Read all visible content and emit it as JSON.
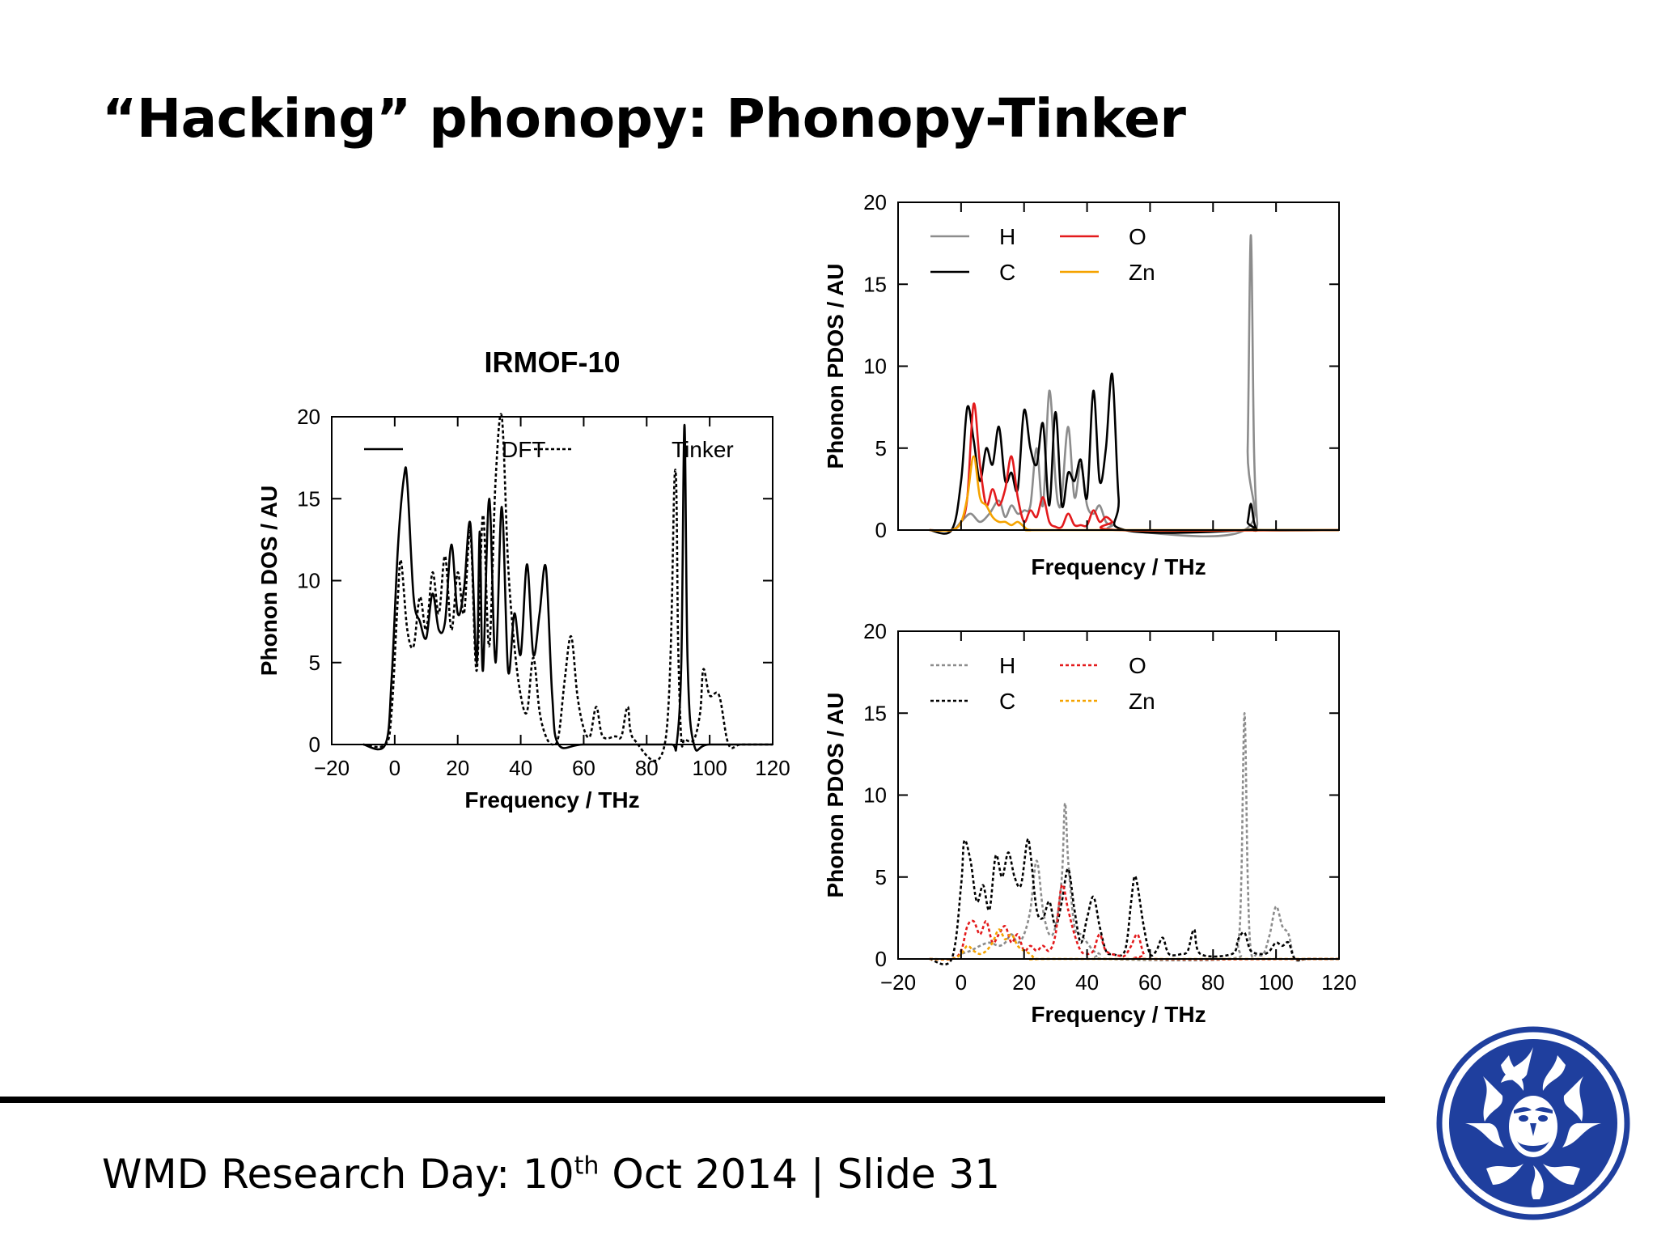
{
  "slide": {
    "title": "“Hacking” phonopy: Phonopy-Tinker",
    "footer": {
      "before": "WMD Research Day: 10",
      "sup": "th",
      "after": " Oct 2014 | Slide 31"
    }
  },
  "chart_data": [
    {
      "id": "dos",
      "type": "line",
      "title": "IRMOF-10",
      "xlabel": "Frequency / THz",
      "ylabel": "Phonon DOS / AU",
      "xlim": [
        -20,
        120
      ],
      "ylim": [
        0,
        20
      ],
      "xticks": [
        -20,
        0,
        20,
        40,
        60,
        80,
        100,
        120
      ],
      "yticks": [
        0,
        5,
        10,
        15,
        20
      ],
      "xtick_labels": [
        "−20",
        "0",
        "20",
        "40",
        "60",
        "80",
        "100",
        "120"
      ],
      "ytick_labels": [
        "0",
        "5",
        "10",
        "15",
        "20"
      ],
      "legend": "top",
      "series": [
        {
          "name": "DFT",
          "color": "#000000",
          "dash": "solid",
          "x": [
            -10,
            -3,
            -1,
            1,
            3,
            4,
            6,
            8,
            10,
            12,
            14,
            16,
            18,
            20,
            22,
            24,
            26,
            27,
            28,
            30,
            32,
            34,
            36,
            38,
            40,
            42,
            44,
            46,
            48,
            50,
            52,
            60,
            80,
            88,
            89.5,
            91,
            92,
            93,
            95,
            100,
            120
          ],
          "y": [
            0,
            0,
            4,
            12,
            16.4,
            16,
            9,
            7.5,
            6.5,
            9.2,
            7,
            7.5,
            12.2,
            8,
            9.5,
            13.5,
            5,
            13,
            4.5,
            15,
            5,
            14.5,
            4.5,
            8,
            5.5,
            11,
            5.5,
            8,
            10.8,
            3,
            0,
            0,
            0,
            0,
            0,
            5,
            19.5,
            5,
            0,
            0,
            0
          ]
        },
        {
          "name": "Tinker",
          "color": "#000000",
          "dash": "dotted",
          "x": [
            -10,
            -3,
            -1,
            1,
            2,
            4,
            6,
            8,
            10,
            12,
            14,
            16,
            18,
            20,
            22,
            24,
            26,
            28,
            30,
            32,
            34,
            36,
            38,
            40,
            42,
            44,
            46,
            48,
            50,
            52,
            54,
            56,
            58,
            60,
            62,
            64,
            66,
            70,
            72,
            74,
            76,
            86,
            89,
            90,
            91,
            92,
            95,
            97,
            98,
            100,
            103,
            106,
            110,
            120
          ],
          "y": [
            0,
            0,
            2,
            9,
            11.2,
            7,
            6,
            9,
            7,
            10.5,
            8,
            11.5,
            7,
            10.5,
            8,
            13,
            4.5,
            14,
            6,
            16,
            20,
            11,
            6,
            3,
            2,
            5.3,
            2,
            0.5,
            0,
            0.5,
            4,
            6.6,
            3,
            1,
            0.5,
            2.3,
            0.5,
            0.5,
            0.5,
            2.3,
            0.3,
            0.3,
            16.7,
            6,
            0.3,
            0.3,
            0.3,
            2,
            4.6,
            3,
            3,
            0,
            0,
            0
          ]
        }
      ]
    },
    {
      "id": "pdos-dft",
      "type": "line",
      "xlabel": "Frequency / THz",
      "ylabel": "Phonon PDOS / AU",
      "xlim": [
        -20,
        120
      ],
      "ylim": [
        0,
        20
      ],
      "yticks": [
        0,
        5,
        10,
        15,
        20
      ],
      "ytick_labels": [
        "0",
        "5",
        "10",
        "15",
        "20"
      ],
      "xticks": [
        -20,
        0,
        20,
        40,
        60,
        80,
        100,
        120
      ],
      "show_xtick_labels": false,
      "legend": "top-left",
      "series": [
        {
          "name": "H",
          "color": "#8c8c8c",
          "dash": "solid",
          "x": [
            -10,
            -3,
            0,
            3,
            6,
            9,
            12,
            14,
            16,
            18,
            20,
            22,
            24,
            26,
            28,
            30,
            31,
            32,
            34,
            36,
            38,
            40,
            42,
            44,
            46,
            48,
            50,
            90,
            91,
            92,
            93,
            94,
            95,
            120
          ],
          "y": [
            0,
            0,
            0.5,
            1,
            0.5,
            1,
            1.8,
            0.8,
            1.5,
            1,
            1.2,
            1.5,
            5,
            1.5,
            8.5,
            3,
            1.5,
            2,
            6.3,
            2,
            4,
            1.5,
            1,
            1.5,
            0.5,
            0.3,
            0,
            0,
            5,
            18,
            5,
            0.5,
            0,
            0
          ]
        },
        {
          "name": "C",
          "color": "#000000",
          "dash": "solid",
          "x": [
            -10,
            -3,
            0,
            2,
            4,
            6,
            8,
            10,
            12,
            14,
            16,
            18,
            20,
            22,
            24,
            26,
            28,
            30,
            32,
            34,
            36,
            38,
            40,
            42,
            44,
            46,
            48,
            50,
            52,
            90,
            91,
            92,
            93,
            94,
            95,
            120
          ],
          "y": [
            0,
            0,
            3,
            7.5,
            5.5,
            3,
            5,
            4,
            6.3,
            3,
            3.5,
            2.5,
            7.3,
            5,
            4,
            6.5,
            1.5,
            7.2,
            1.5,
            3.5,
            3,
            4.3,
            2,
            8.5,
            3,
            5,
            9.5,
            2,
            0,
            0,
            0.5,
            1.6,
            0.5,
            0,
            0,
            0
          ]
        },
        {
          "name": "O",
          "color": "#e31a1c",
          "dash": "solid",
          "x": [
            -10,
            -3,
            0,
            2,
            4,
            6,
            8,
            10,
            12,
            14,
            16,
            18,
            20,
            22,
            24,
            26,
            28,
            30,
            32,
            34,
            36,
            38,
            40,
            42,
            44,
            46,
            48,
            50,
            120
          ],
          "y": [
            0,
            0,
            0.5,
            2,
            7.7,
            4,
            1.5,
            2.5,
            1.5,
            2.5,
            4.5,
            2,
            0.5,
            1.2,
            0.8,
            2,
            0.5,
            0.2,
            0.2,
            1,
            0.3,
            0.3,
            0.3,
            1.2,
            0.5,
            0.8,
            0.5,
            0,
            0
          ]
        },
        {
          "name": "Zn",
          "color": "#f5a300",
          "dash": "solid",
          "x": [
            -10,
            -3,
            0,
            2,
            4,
            6,
            8,
            10,
            12,
            14,
            16,
            18,
            20,
            22,
            30,
            120
          ],
          "y": [
            0,
            0,
            0.5,
            2,
            4.5,
            2,
            1.5,
            0.8,
            0.5,
            0.5,
            0.3,
            0.5,
            0.2,
            0,
            0,
            0
          ]
        }
      ]
    },
    {
      "id": "pdos-tinker",
      "type": "line",
      "xlabel": "Frequency / THz",
      "ylabel": "Phonon PDOS / AU",
      "xlim": [
        -20,
        120
      ],
      "ylim": [
        0,
        20
      ],
      "xticks": [
        -20,
        0,
        20,
        40,
        60,
        80,
        100,
        120
      ],
      "yticks": [
        0,
        5,
        10,
        15,
        20
      ],
      "xtick_labels": [
        "−20",
        "0",
        "20",
        "40",
        "60",
        "80",
        "100",
        "120"
      ],
      "ytick_labels": [
        "0",
        "5",
        "10",
        "15",
        "20"
      ],
      "legend": "top-left",
      "series": [
        {
          "name": "H",
          "color": "#8c8c8c",
          "dash": "dotted",
          "x": [
            -10,
            -3,
            0,
            3,
            6,
            9,
            12,
            14,
            16,
            18,
            20,
            22,
            24,
            26,
            28,
            30,
            32,
            33,
            34,
            36,
            38,
            40,
            42,
            44,
            46,
            85,
            88,
            89,
            90,
            91,
            92,
            94,
            96,
            98,
            100,
            102,
            104,
            106,
            110,
            120
          ],
          "y": [
            0,
            0,
            0.3,
            0.5,
            0.8,
            1,
            0.8,
            1,
            1.5,
            1,
            1.5,
            3,
            6,
            3,
            1.5,
            2,
            5,
            9.5,
            6,
            2,
            1.5,
            1,
            0.5,
            0.3,
            0,
            0,
            1,
            5,
            15,
            5,
            0.5,
            0.3,
            0.3,
            1.5,
            3.2,
            2,
            1.5,
            0,
            0,
            0
          ]
        },
        {
          "name": "C",
          "color": "#000000",
          "dash": "dotted",
          "x": [
            -10,
            -3,
            0,
            1,
            3,
            5,
            7,
            9,
            11,
            13,
            15,
            17,
            19,
            21,
            22,
            24,
            26,
            28,
            30,
            32,
            34,
            36,
            38,
            40,
            42,
            44,
            46,
            48,
            52,
            54,
            55,
            56,
            58,
            60,
            62,
            64,
            66,
            70,
            72,
            74,
            76,
            86,
            88,
            90,
            92,
            96,
            98,
            100,
            102,
            104,
            106,
            110,
            120
          ],
          "y": [
            0,
            0,
            4.5,
            7.2,
            6,
            3.5,
            4.5,
            3,
            6.3,
            5,
            6.5,
            5,
            4.5,
            7.2,
            6.5,
            3,
            2.5,
            3.5,
            2,
            3.5,
            5.5,
            3,
            1,
            2.5,
            3.8,
            2,
            0.5,
            0.3,
            0.5,
            3.5,
            5,
            4.5,
            2,
            0.3,
            0.5,
            1.3,
            0.3,
            0.3,
            0.5,
            1.8,
            0.3,
            0.3,
            1.2,
            1.6,
            0.5,
            0.3,
            0.5,
            1,
            0.8,
            1,
            0,
            0,
            0
          ]
        },
        {
          "name": "O",
          "color": "#e31a1c",
          "dash": "dotted",
          "x": [
            -10,
            -3,
            0,
            2,
            4,
            6,
            8,
            10,
            12,
            14,
            16,
            18,
            20,
            22,
            24,
            26,
            28,
            30,
            32,
            34,
            36,
            38,
            40,
            42,
            44,
            46,
            50,
            52,
            54,
            56,
            58,
            60,
            120
          ],
          "y": [
            0,
            0,
            0.5,
            2,
            2.3,
            1.5,
            2.3,
            1,
            1.5,
            2,
            1,
            1.5,
            0.5,
            0.8,
            0.5,
            0.8,
            0.5,
            1.5,
            4.5,
            3,
            1.5,
            0.5,
            0.3,
            0.5,
            1.5,
            0.5,
            0.2,
            0.2,
            0.8,
            1.5,
            0.3,
            0,
            0
          ]
        },
        {
          "name": "Zn",
          "color": "#f5a300",
          "dash": "dotted",
          "x": [
            -10,
            -3,
            0,
            2,
            4,
            6,
            8,
            10,
            12,
            14,
            16,
            18,
            20,
            22,
            24,
            30,
            120
          ],
          "y": [
            0,
            0,
            0.3,
            0.8,
            0.5,
            0.3,
            0.5,
            1,
            1.8,
            1.2,
            1.5,
            0.8,
            0.5,
            0.3,
            0,
            0,
            0
          ]
        }
      ]
    }
  ]
}
